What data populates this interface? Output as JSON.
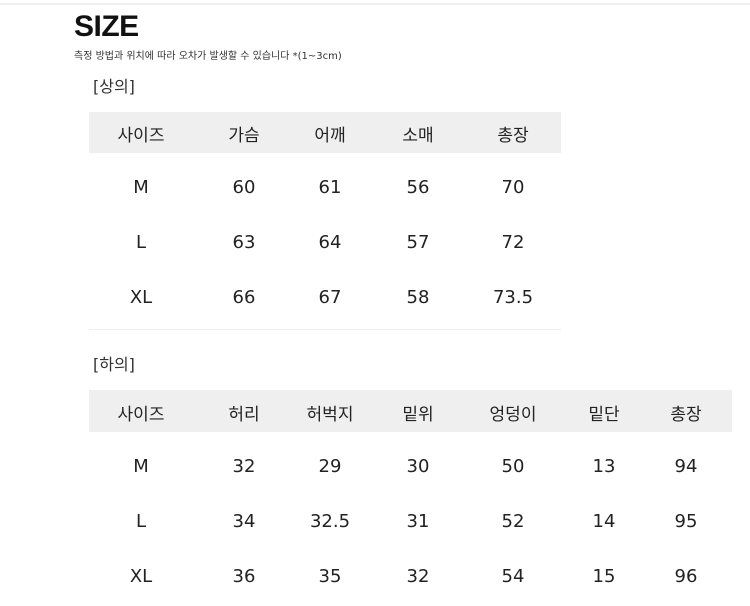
{
  "title": "SIZE",
  "note": "측정 방법과 위치에 따라 오차가 발생할 수 있습니다 *(1~3cm)",
  "top": {
    "label": "[상의]",
    "headers": [
      "사이즈",
      "가슴",
      "어깨",
      "소매",
      "총장"
    ],
    "rows": [
      [
        "M",
        "60",
        "61",
        "56",
        "70"
      ],
      [
        "L",
        "63",
        "64",
        "57",
        "72"
      ],
      [
        "XL",
        "66",
        "67",
        "58",
        "73.5"
      ]
    ]
  },
  "bottom": {
    "label": "[하의]",
    "headers": [
      "사이즈",
      "허리",
      "허벅지",
      "밑위",
      "엉덩이",
      "밑단",
      "총장"
    ],
    "rows": [
      [
        "M",
        "32",
        "29",
        "30",
        "50",
        "13",
        "94"
      ],
      [
        "L",
        "34",
        "32.5",
        "31",
        "52",
        "14",
        "95"
      ],
      [
        "XL",
        "36",
        "35",
        "32",
        "54",
        "15",
        "96"
      ]
    ]
  }
}
